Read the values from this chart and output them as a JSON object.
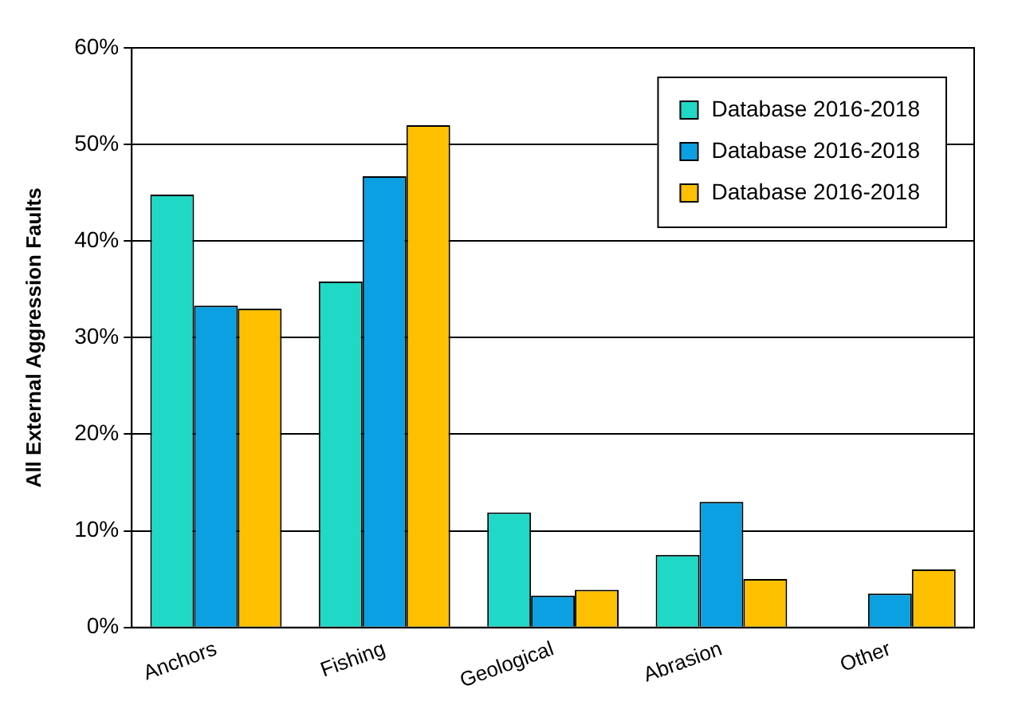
{
  "chart_data": {
    "type": "bar",
    "ylabel": "All External Aggression Faults",
    "categories": [
      "Anchors",
      "Fishing",
      "Geological",
      "Abrasion",
      "Other"
    ],
    "series": [
      {
        "name": "Database 2016-2018",
        "color": "#20d8c6",
        "values": [
          44.8,
          35.8,
          11.9,
          7.5,
          null
        ]
      },
      {
        "name": "Database 2016-2018",
        "color": "#0aa0e2",
        "values": [
          33.3,
          46.7,
          3.3,
          13.0,
          3.5
        ]
      },
      {
        "name": "Database 2016-2018",
        "color": "#ffc000",
        "values": [
          33.0,
          52.0,
          3.9,
          5.0,
          6.0
        ]
      }
    ],
    "ylim": [
      0,
      60
    ],
    "yticks": [
      {
        "value": 0,
        "label": "0%"
      },
      {
        "value": 10,
        "label": "10%"
      },
      {
        "value": 20,
        "label": "20%"
      },
      {
        "value": 30,
        "label": "30%"
      },
      {
        "value": 40,
        "label": "40%"
      },
      {
        "value": 50,
        "label": "50%"
      },
      {
        "value": 60,
        "label": "60%"
      }
    ],
    "grid": "y",
    "legend": "top right"
  }
}
